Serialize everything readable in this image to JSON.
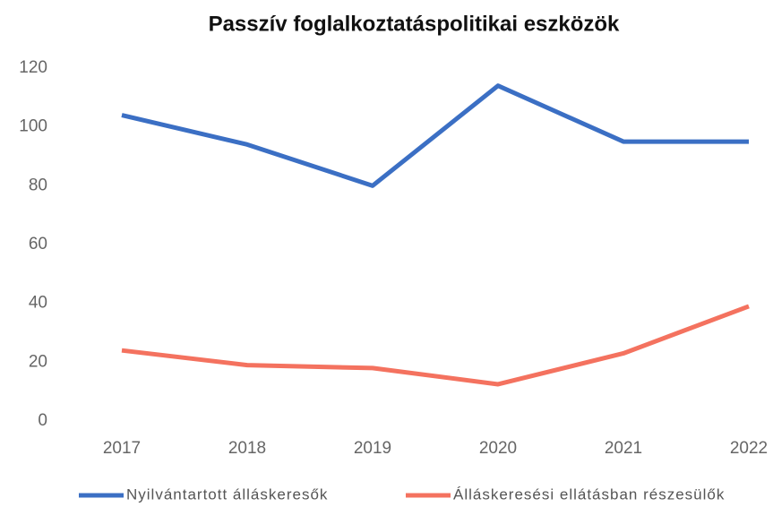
{
  "chart_data": {
    "type": "line",
    "title": "Passzív foglalkoztatáspolitikai eszközök",
    "categories": [
      "2017",
      "2018",
      "2019",
      "2020",
      "2021",
      "2022"
    ],
    "series": [
      {
        "name": "Nyilvántartott álláskeresők",
        "color": "#3b6fc4",
        "values": [
          104,
          94,
          80,
          114,
          95,
          95
        ]
      },
      {
        "name": "Álláskeresési ellátásban részesülők",
        "color": "#f4725f",
        "values": [
          24,
          19,
          18,
          12.5,
          23,
          39
        ]
      }
    ],
    "ylim": [
      0,
      120
    ],
    "yticks": [
      0,
      20,
      40,
      60,
      80,
      100,
      120
    ],
    "grid": false,
    "legend": "bottom"
  }
}
